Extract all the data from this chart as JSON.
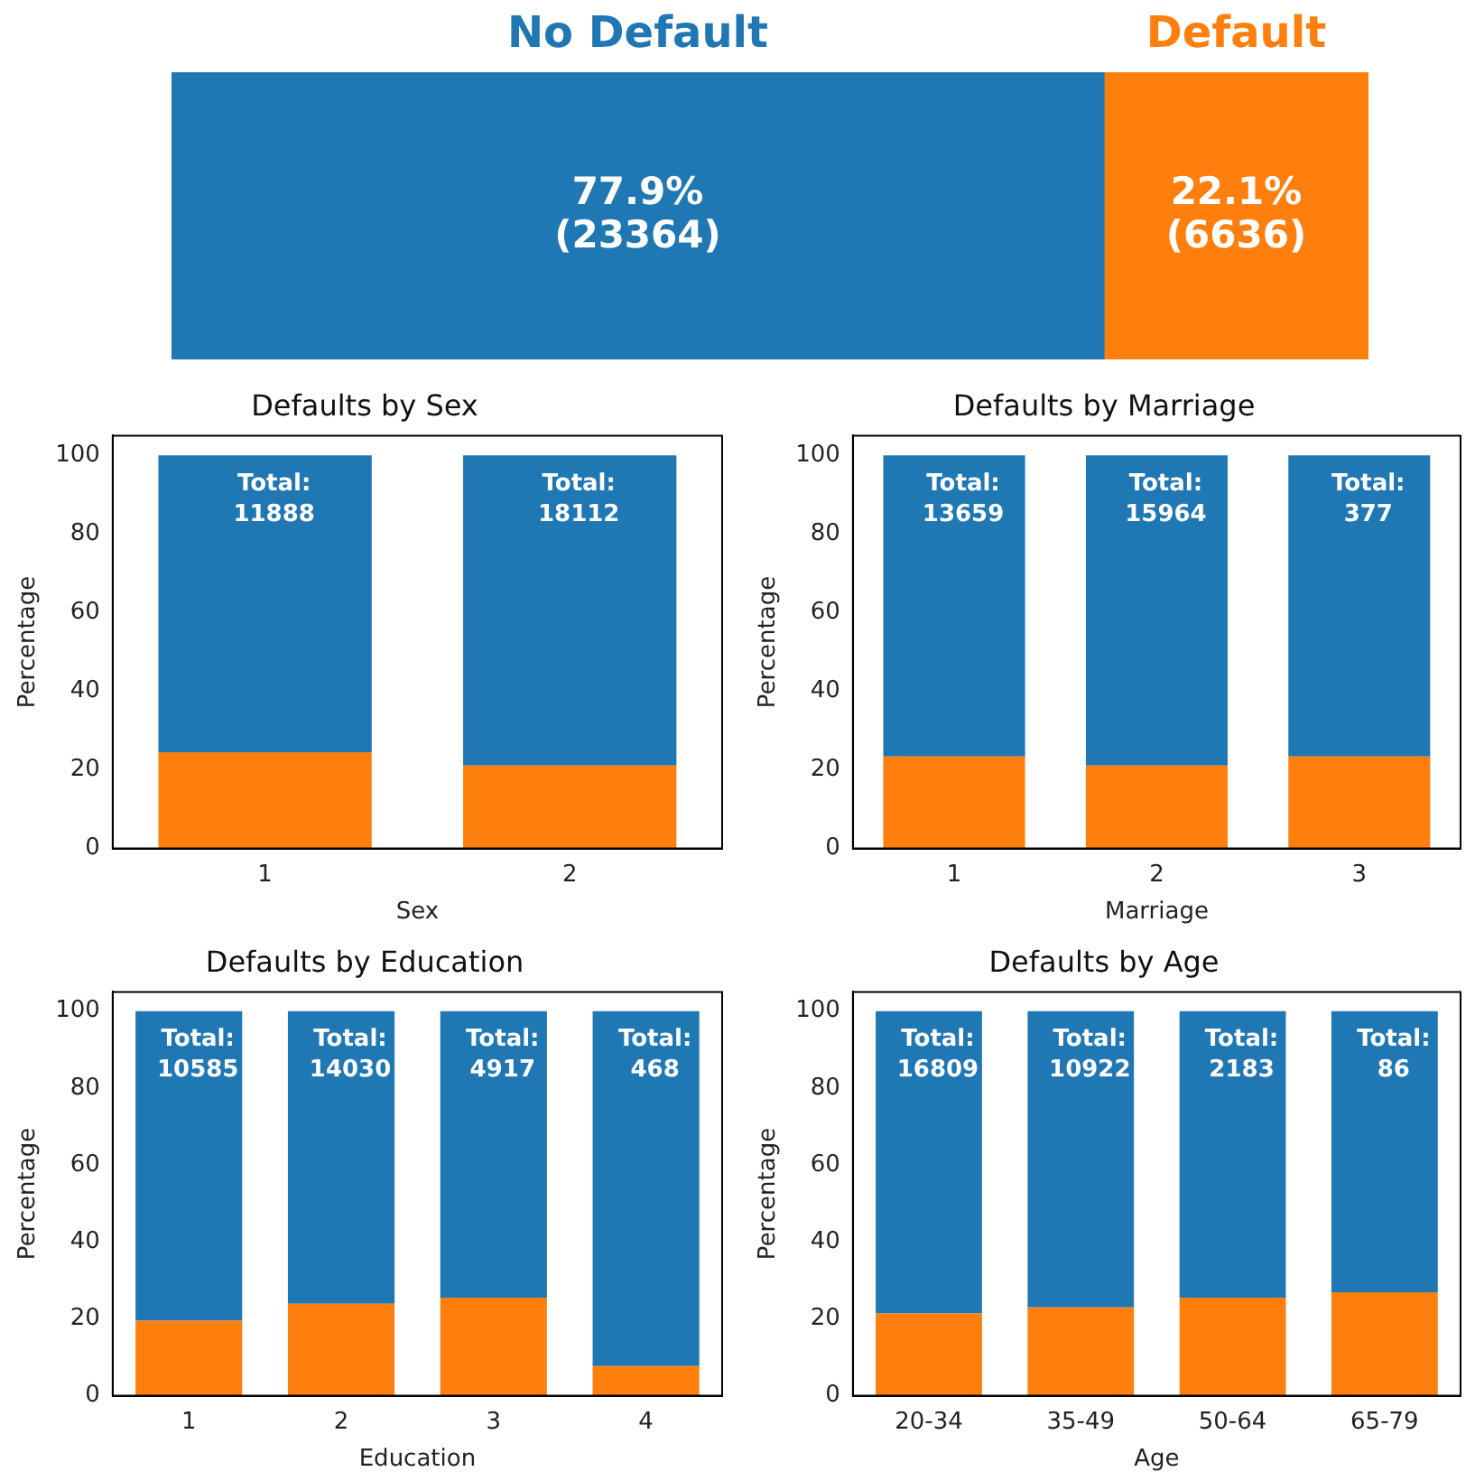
{
  "chart_data": [
    {
      "type": "bar",
      "orientation": "horizontal",
      "stacked": true,
      "tick_labels": false,
      "categories": [
        null
      ],
      "series": [
        {
          "name": "No Default",
          "color": "#1f77b4",
          "values": [
            77.9
          ],
          "value_labels": [
            "77.9%\n(23364)"
          ]
        },
        {
          "name": "Default",
          "color": "#ff7f0e",
          "values": [
            22.1
          ],
          "value_labels": [
            "22.1%\n(6636)"
          ]
        }
      ]
    },
    {
      "type": "bar",
      "stacked": true,
      "title": "Defaults by Sex",
      "xlabel": "Sex",
      "ylabel": "Percentage",
      "categories": [
        "1",
        "2"
      ],
      "ylim": [
        0,
        105
      ],
      "yticks": [
        0,
        20,
        40,
        60,
        80,
        100
      ],
      "grid": false,
      "series": [
        {
          "color": "#ff7f0e",
          "values": [
            24.5,
            21.1
          ]
        },
        {
          "color": "#1f77b4",
          "values": [
            75.5,
            78.9
          ]
        }
      ],
      "annotations": [
        "Total:\n11888",
        "Total:\n18112"
      ]
    },
    {
      "type": "bar",
      "stacked": true,
      "title": "Defaults by Marriage",
      "xlabel": "Marriage",
      "ylabel": "Percentage",
      "categories": [
        "1",
        "2",
        "3"
      ],
      "ylim": [
        0,
        105
      ],
      "yticks": [
        0,
        20,
        40,
        60,
        80,
        100
      ],
      "grid": false,
      "series": [
        {
          "color": "#ff7f0e",
          "values": [
            23.4,
            21.1,
            23.4
          ]
        },
        {
          "color": "#1f77b4",
          "values": [
            76.6,
            78.9,
            76.6
          ]
        }
      ],
      "annotations": [
        "Total:\n13659",
        "Total:\n15964",
        "Total:\n377"
      ]
    },
    {
      "type": "bar",
      "stacked": true,
      "title": "Defaults by Education",
      "xlabel": "Education",
      "ylabel": "Percentage",
      "categories": [
        "1",
        "2",
        "3",
        "4"
      ],
      "ylim": [
        0,
        105
      ],
      "yticks": [
        0,
        20,
        40,
        60,
        80,
        100
      ],
      "grid": false,
      "series": [
        {
          "color": "#ff7f0e",
          "values": [
            19.5,
            23.9,
            25.5,
            7.7
          ]
        },
        {
          "color": "#1f77b4",
          "values": [
            80.5,
            76.1,
            74.5,
            92.3
          ]
        }
      ],
      "annotations": [
        "Total:\n10585",
        "Total:\n14030",
        "Total:\n4917",
        "Total:\n468"
      ]
    },
    {
      "type": "bar",
      "stacked": true,
      "title": "Defaults by Age",
      "xlabel": "Age",
      "ylabel": "Percentage",
      "categories": [
        "20-34",
        "35-49",
        "50-64",
        "65-79"
      ],
      "ylim": [
        0,
        105
      ],
      "yticks": [
        0,
        20,
        40,
        60,
        80,
        100
      ],
      "grid": false,
      "series": [
        {
          "color": "#ff7f0e",
          "values": [
            21.4,
            23.0,
            25.5,
            26.9
          ]
        },
        {
          "color": "#1f77b4",
          "values": [
            78.6,
            77.0,
            74.5,
            73.1
          ]
        }
      ],
      "annotations": [
        "Total:\n16809",
        "Total:\n10922",
        "Total:\n2183",
        "Total:\n86"
      ]
    }
  ]
}
